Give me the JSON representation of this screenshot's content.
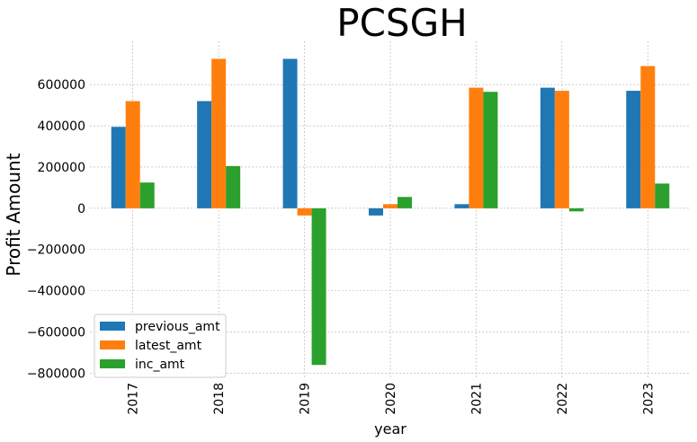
{
  "chart_data": {
    "type": "bar",
    "title": "PCSGH",
    "xlabel": "year",
    "ylabel": "Profit Amount",
    "categories": [
      "2017",
      "2018",
      "2019",
      "2020",
      "2021",
      "2022",
      "2023"
    ],
    "series": [
      {
        "name": "previous_amt",
        "color": "#1f77b4",
        "values": [
          395000,
          520000,
          725000,
          -35000,
          20000,
          585000,
          570000
        ]
      },
      {
        "name": "latest_amt",
        "color": "#ff7f0e",
        "values": [
          520000,
          725000,
          -35000,
          20000,
          585000,
          570000,
          690000
        ]
      },
      {
        "name": "inc_amt",
        "color": "#2ca02c",
        "values": [
          125000,
          205000,
          -760000,
          55000,
          565000,
          -15000,
          120000
        ]
      }
    ],
    "ylim": [
      -820000,
      810000
    ],
    "yticks": [
      -800000,
      -600000,
      -400000,
      -200000,
      0,
      200000,
      400000,
      600000
    ],
    "ytick_labels": [
      "−800000",
      "−600000",
      "−400000",
      "−200000",
      "0",
      "200000",
      "400000",
      "600000"
    ],
    "grid": true,
    "legend_position": "lower-left"
  }
}
